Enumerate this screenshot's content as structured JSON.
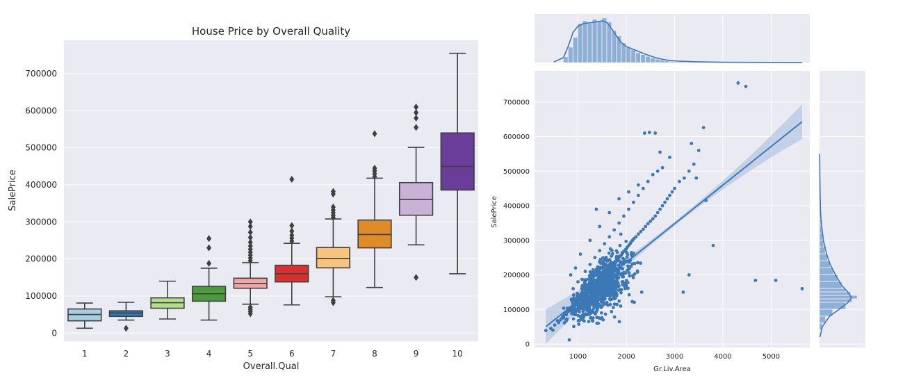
{
  "chart_data": [
    {
      "type": "box",
      "title": "House Price by Overall Quality",
      "xlabel": "Overall.Qual",
      "ylabel": "SalePrice",
      "ylim": [
        -22000,
        790000
      ],
      "yticks": [
        0,
        100000,
        200000,
        300000,
        400000,
        500000,
        600000,
        700000
      ],
      "grid": true,
      "categories": [
        "1",
        "2",
        "3",
        "4",
        "5",
        "6",
        "7",
        "8",
        "9",
        "10"
      ],
      "boxes": [
        {
          "whislo": 13000,
          "q1": 33000,
          "median": 50000,
          "q3": 65000,
          "whishi": 81000,
          "fliers": []
        },
        {
          "whislo": 35000,
          "q1": 45000,
          "median": 54000,
          "q3": 60000,
          "whishi": 83000,
          "fliers": [
            13000
          ]
        },
        {
          "whislo": 38000,
          "q1": 67000,
          "median": 82000,
          "q3": 95000,
          "whishi": 140000,
          "fliers": []
        },
        {
          "whislo": 35000,
          "q1": 86000,
          "median": 106000,
          "q3": 126000,
          "whishi": 175000,
          "fliers": [
            188000,
            230000,
            255000
          ]
        },
        {
          "whislo": 78000,
          "q1": 121000,
          "median": 134000,
          "q3": 148000,
          "whishi": 190000,
          "fliers": [
            52000,
            58000,
            64000,
            70000,
            195000,
            202000,
            210000,
            218000,
            226000,
            235000,
            245000,
            258000,
            272000,
            288000,
            300000
          ]
        },
        {
          "whislo": 76000,
          "q1": 138000,
          "median": 160000,
          "q3": 183000,
          "whishi": 242000,
          "fliers": [
            248000,
            256000,
            264000,
            275000,
            290000,
            415000
          ]
        },
        {
          "whislo": 98000,
          "q1": 176000,
          "median": 201000,
          "q3": 231000,
          "whishi": 308000,
          "fliers": [
            82000,
            88000,
            312000,
            318000,
            325000,
            332000,
            340000,
            375000,
            382000
          ]
        },
        {
          "whislo": 123000,
          "q1": 230000,
          "median": 266000,
          "q3": 305000,
          "whishi": 418000,
          "fliers": [
            422000,
            430000,
            438000,
            445000,
            538000
          ]
        },
        {
          "whislo": 238000,
          "q1": 318000,
          "median": 361000,
          "q3": 406000,
          "whishi": 501000,
          "fliers": [
            150000,
            555000,
            580000,
            595000,
            610000
          ]
        },
        {
          "whislo": 160000,
          "q1": 386000,
          "median": 450000,
          "q3": 540000,
          "whishi": 755000,
          "fliers": []
        }
      ],
      "colors": [
        "#a6cee3",
        "#2c7bb6",
        "#b2df8a",
        "#4b9b3d",
        "#f4a6a6",
        "#d7302f",
        "#f7c47e",
        "#e08b2a",
        "#c8b2d6",
        "#6a3d9a"
      ]
    },
    {
      "type": "scatter",
      "xlabel": "Gr.Liv.Area",
      "ylabel": "SalePrice",
      "xlim": [
        100,
        5800
      ],
      "ylim": [
        -10000,
        790000
      ],
      "xticks": [
        1000,
        2000,
        3000,
        4000,
        5000
      ],
      "yticks": [
        0,
        100000,
        200000,
        300000,
        400000,
        500000,
        600000,
        700000
      ],
      "grid": true,
      "regression": {
        "x": [
          334,
          5642
        ],
        "y": [
          50000,
          643000
        ]
      },
      "series": [
        {
          "x": [
            334,
            438,
            480,
            520,
            600,
            640,
            700,
            760,
            800,
            820,
            850,
            880,
            900,
            920,
            950,
            980,
            1000,
            1020,
            1040,
            1060,
            1080,
            1100,
            1120,
            1150,
            1180,
            1200,
            1220,
            1250,
            1280,
            1300,
            1320,
            1350,
            1380,
            1400,
            1420,
            1450,
            1480,
            1500,
            1520,
            1550,
            1580,
            1600,
            1620,
            1650,
            1680,
            1700,
            1720,
            1750,
            1780,
            1800,
            1820,
            1850,
            1880,
            1900,
            1920,
            1950,
            1980,
            2000,
            2020,
            2050,
            2080,
            2100,
            2130,
            2160,
            2200,
            2250,
            2300,
            2350,
            2400,
            2450,
            2500,
            2550,
            2600,
            2650,
            2700,
            2750,
            2800,
            2850,
            2900,
            2950,
            3000,
            3100,
            3200,
            3300,
            3400,
            3500,
            3600,
            3650,
            3800,
            4316,
            4476,
            4676,
            5095,
            5642,
            1100,
            1200,
            1300,
            1400,
            1500,
            1600,
            1700,
            1800,
            900,
            1000,
            1150,
            1250,
            1350,
            1450,
            1550,
            1650,
            1750,
            1850,
            1950,
            2050,
            2150,
            2250,
            2350,
            2450,
            2550,
            2650,
            2750,
            850,
            950,
            1050,
            1250,
            1450,
            1650,
            1850,
            2050,
            2250,
            1380,
            1520,
            2380,
            2480,
            2600,
            2320,
            3300,
            3180,
            2700,
            2900,
            3350,
            3450,
            1420
          ],
          "y": [
            39000,
            45000,
            40000,
            55000,
            62000,
            70000,
            78000,
            85000,
            95000,
            12000,
            100000,
            108000,
            112000,
            118000,
            122000,
            128000,
            130000,
            126000,
            135000,
            140000,
            138000,
            145000,
            148000,
            150000,
            155000,
            152000,
            160000,
            165000,
            162000,
            170000,
            168000,
            175000,
            180000,
            178000,
            182000,
            188000,
            190000,
            192000,
            196000,
            200000,
            205000,
            210000,
            208000,
            215000,
            220000,
            222000,
            228000,
            232000,
            235000,
            240000,
            245000,
            250000,
            255000,
            258000,
            262000,
            268000,
            272000,
            275000,
            280000,
            285000,
            290000,
            295000,
            300000,
            305000,
            310000,
            318000,
            325000,
            332000,
            340000,
            348000,
            355000,
            362000,
            370000,
            380000,
            390000,
            400000,
            410000,
            420000,
            430000,
            440000,
            450000,
            470000,
            480000,
            500000,
            520000,
            560000,
            626000,
            415000,
            285000,
            755000,
            745000,
            184000,
            184000,
            160000,
            80000,
            85000,
            95000,
            105000,
            110000,
            120000,
            130000,
            140000,
            160000,
            180000,
            210000,
            230000,
            250000,
            270000,
            290000,
            310000,
            330000,
            350000,
            370000,
            390000,
            410000,
            430000,
            450000,
            470000,
            490000,
            500000,
            510000,
            200000,
            220000,
            260000,
            300000,
            340000,
            380000,
            420000,
            440000,
            460000,
            390000,
            70000,
            610000,
            612000,
            610000,
            150000,
            200000,
            150000,
            555000,
            540000,
            580000,
            480000,
            60000
          ]
        }
      ],
      "colors": {
        "point": "#3b78b5",
        "line": "#3b78b5",
        "band": "#a9bedd"
      }
    },
    {
      "type": "histogram",
      "orientation": "vertical",
      "variable": "Gr.Liv.Area",
      "xlim": [
        100,
        5800
      ],
      "bins": [
        {
          "x0": 700,
          "x1": 800,
          "count": 20
        },
        {
          "x0": 800,
          "x1": 900,
          "count": 55
        },
        {
          "x0": 900,
          "x1": 1000,
          "count": 90
        },
        {
          "x0": 1000,
          "x1": 1100,
          "count": 140
        },
        {
          "x0": 1100,
          "x1": 1200,
          "count": 150
        },
        {
          "x0": 1200,
          "x1": 1300,
          "count": 140
        },
        {
          "x0": 1300,
          "x1": 1400,
          "count": 155
        },
        {
          "x0": 1400,
          "x1": 1500,
          "count": 148
        },
        {
          "x0": 1500,
          "x1": 1600,
          "count": 160
        },
        {
          "x0": 1600,
          "x1": 1700,
          "count": 145
        },
        {
          "x0": 1700,
          "x1": 1800,
          "count": 115
        },
        {
          "x0": 1800,
          "x1": 1900,
          "count": 95
        },
        {
          "x0": 1900,
          "x1": 2000,
          "count": 70
        },
        {
          "x0": 2000,
          "x1": 2100,
          "count": 55
        },
        {
          "x0": 2100,
          "x1": 2200,
          "count": 45
        },
        {
          "x0": 2200,
          "x1": 2300,
          "count": 35
        },
        {
          "x0": 2300,
          "x1": 2400,
          "count": 28
        },
        {
          "x0": 2400,
          "x1": 2500,
          "count": 22
        },
        {
          "x0": 2500,
          "x1": 2600,
          "count": 16
        },
        {
          "x0": 2600,
          "x1": 2700,
          "count": 12
        },
        {
          "x0": 2700,
          "x1": 2800,
          "count": 8
        },
        {
          "x0": 2800,
          "x1": 2900,
          "count": 6
        },
        {
          "x0": 2900,
          "x1": 3000,
          "count": 4
        },
        {
          "x0": 3000,
          "x1": 3200,
          "count": 3
        },
        {
          "x0": 3200,
          "x1": 3600,
          "count": 2
        },
        {
          "x0": 3600,
          "x1": 4000,
          "count": 1
        },
        {
          "x0": 4000,
          "x1": 4500,
          "count": 1
        }
      ],
      "kde": {
        "x": [
          500,
          700,
          800,
          900,
          1000,
          1100,
          1200,
          1300,
          1400,
          1500,
          1600,
          1700,
          1800,
          1900,
          2000,
          2200,
          2400,
          2600,
          2800,
          3000,
          3400,
          4000,
          5000,
          5642
        ],
        "y": [
          2,
          18,
          60,
          110,
          132,
          140,
          143,
          145,
          148,
          151,
          145,
          122,
          95,
          72,
          58,
          44,
          30,
          18,
          10,
          6,
          3,
          1,
          0.5,
          0.5
        ]
      }
    },
    {
      "type": "histogram",
      "orientation": "horizontal",
      "variable": "SalePrice",
      "ylim": [
        -10000,
        790000
      ],
      "bins": [
        {
          "y0": 40000,
          "y1": 60000,
          "count": 8
        },
        {
          "y0": 60000,
          "y1": 80000,
          "count": 18
        },
        {
          "y0": 80000,
          "y1": 100000,
          "count": 40
        },
        {
          "y0": 100000,
          "y1": 120000,
          "count": 80
        },
        {
          "y0": 120000,
          "y1": 130000,
          "count": 100
        },
        {
          "y0": 130000,
          "y1": 140000,
          "count": 115
        },
        {
          "y0": 140000,
          "y1": 150000,
          "count": 95
        },
        {
          "y0": 150000,
          "y1": 160000,
          "count": 80
        },
        {
          "y0": 160000,
          "y1": 180000,
          "count": 68
        },
        {
          "y0": 180000,
          "y1": 200000,
          "count": 55
        },
        {
          "y0": 200000,
          "y1": 220000,
          "count": 42
        },
        {
          "y0": 220000,
          "y1": 240000,
          "count": 32
        },
        {
          "y0": 240000,
          "y1": 260000,
          "count": 24
        },
        {
          "y0": 260000,
          "y1": 280000,
          "count": 17
        },
        {
          "y0": 280000,
          "y1": 300000,
          "count": 12
        },
        {
          "y0": 300000,
          "y1": 320000,
          "count": 9
        },
        {
          "y0": 320000,
          "y1": 340000,
          "count": 6
        },
        {
          "y0": 340000,
          "y1": 360000,
          "count": 4
        },
        {
          "y0": 360000,
          "y1": 400000,
          "count": 3
        },
        {
          "y0": 400000,
          "y1": 450000,
          "count": 2
        },
        {
          "y0": 450000,
          "y1": 550000,
          "count": 1
        }
      ],
      "kde": {
        "y": [
          20000,
          50000,
          80000,
          100000,
          120000,
          135000,
          150000,
          170000,
          200000,
          230000,
          260000,
          300000,
          340000,
          380000,
          420000,
          480000,
          550000
        ],
        "x": [
          1,
          8,
          28,
          55,
          80,
          90,
          80,
          62,
          45,
          30,
          20,
          11,
          6,
          3,
          2,
          1,
          0.5
        ]
      }
    }
  ]
}
